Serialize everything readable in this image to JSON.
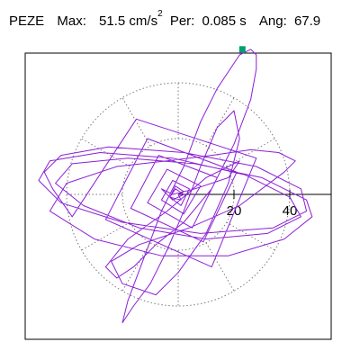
{
  "header": {
    "station": "PEZE",
    "max_label": "Max:",
    "max_value": "51.5",
    "max_unit": "cm/s",
    "max_unit_exp": "2",
    "per_label": "Per:",
    "per_value": "0.085",
    "per_unit": "s",
    "ang_label": "Ang:",
    "ang_value": "67.9"
  },
  "chart_data": {
    "type": "line",
    "subtype": "polar-particle-motion",
    "title": "",
    "xlabel": "",
    "ylabel": "",
    "radial_ticks": [
      20,
      40
    ],
    "radial_tick_labels": [
      "20",
      "40"
    ],
    "radial_max": 40,
    "sectors_deg": 30,
    "xlim": [
      -57,
      57
    ],
    "ylim": [
      -52,
      52
    ],
    "grid": true,
    "colors": {
      "trace": "#8c1fd6",
      "marker": "#009e73",
      "axis": "#000000",
      "grid": "#7a7a7a"
    },
    "series": [
      {
        "points": [
          [
            0,
            0
          ],
          [
            2,
            1
          ],
          [
            -1,
            3
          ],
          [
            -3,
            -1
          ],
          [
            1,
            -4
          ],
          [
            4,
            2
          ],
          [
            -2,
            5
          ],
          [
            -6,
            -2
          ],
          [
            2,
            -7
          ],
          [
            8,
            3
          ],
          [
            -4,
            9
          ],
          [
            -11,
            -3
          ],
          [
            5,
            -12
          ],
          [
            14,
            6
          ],
          [
            -7,
            14
          ],
          [
            -17,
            -5
          ],
          [
            9,
            -17
          ],
          [
            21,
            8
          ],
          [
            -11,
            20
          ],
          [
            -26,
            -9
          ],
          [
            12,
            -26
          ],
          [
            28,
            13
          ],
          [
            -15,
            27
          ],
          [
            -38,
            -8
          ],
          [
            -45,
            2
          ],
          [
            -48,
            8
          ],
          [
            -42,
            14
          ],
          [
            -25,
            17
          ],
          [
            2,
            15
          ],
          [
            28,
            10
          ],
          [
            44,
            2
          ],
          [
            46,
            -6
          ],
          [
            34,
            -12
          ],
          [
            8,
            -14
          ],
          [
            -20,
            -10
          ],
          [
            -42,
            -3
          ],
          [
            -50,
            5
          ],
          [
            -46,
            12
          ],
          [
            -28,
            15
          ],
          [
            -2,
            13
          ],
          [
            24,
            7
          ],
          [
            40,
            -1
          ],
          [
            44,
            -8
          ],
          [
            32,
            -14
          ],
          [
            10,
            -16
          ],
          [
            -14,
            -12
          ],
          [
            -34,
            -4
          ],
          [
            -44,
            4
          ],
          [
            -38,
            11
          ],
          [
            -18,
            13
          ],
          [
            6,
            11
          ],
          [
            30,
            6
          ],
          [
            46,
            -2
          ],
          [
            48,
            -8
          ],
          [
            38,
            -16
          ],
          [
            18,
            -22
          ],
          [
            -6,
            -22
          ],
          [
            -30,
            -16
          ],
          [
            -46,
            -6
          ],
          [
            -40,
            4
          ],
          [
            -22,
            10
          ],
          [
            -4,
            12
          ],
          [
            12,
            14
          ],
          [
            26,
            16
          ],
          [
            36,
            15
          ],
          [
            42,
            12
          ],
          [
            38,
            8
          ],
          [
            22,
            -4
          ],
          [
            4,
            -12
          ],
          [
            -14,
            -18
          ],
          [
            -24,
            -24
          ],
          [
            -20,
            -32
          ],
          [
            -8,
            -36
          ],
          [
            0,
            -28
          ],
          [
            10,
            -14
          ],
          [
            18,
            4
          ],
          [
            22,
            20
          ],
          [
            20,
            30
          ],
          [
            14,
            24
          ],
          [
            8,
            10
          ],
          [
            2,
            -6
          ],
          [
            -4,
            -20
          ],
          [
            -10,
            -32
          ],
          [
            -16,
            -40
          ],
          [
            -20,
            -46
          ],
          [
            -18,
            -38
          ],
          [
            -12,
            -22
          ],
          [
            -6,
            -6
          ],
          [
            2,
            10
          ],
          [
            8,
            26
          ],
          [
            14,
            38
          ],
          [
            18,
            44
          ],
          [
            22,
            50
          ],
          [
            26,
            52
          ],
          [
            28,
            50
          ],
          [
            28,
            45
          ],
          [
            26,
            34
          ],
          [
            20,
            18
          ],
          [
            12,
            2
          ],
          [
            2,
            -10
          ],
          [
            -8,
            -18
          ],
          [
            -16,
            -26
          ],
          [
            -22,
            -30
          ],
          [
            -26,
            -26
          ],
          [
            -18,
            -16
          ],
          [
            -4,
            -6
          ],
          [
            10,
            6
          ],
          [
            22,
            12
          ],
          [
            18,
            6
          ],
          [
            6,
            2
          ],
          [
            -2,
            0
          ],
          [
            -6,
            2
          ],
          [
            -2,
            -2
          ],
          [
            2,
            0
          ],
          [
            -1,
            2
          ],
          [
            -3,
            -1
          ],
          [
            1,
            -2
          ],
          [
            0,
            0
          ]
        ]
      }
    ],
    "end_marker": [
      23,
      52
    ]
  }
}
